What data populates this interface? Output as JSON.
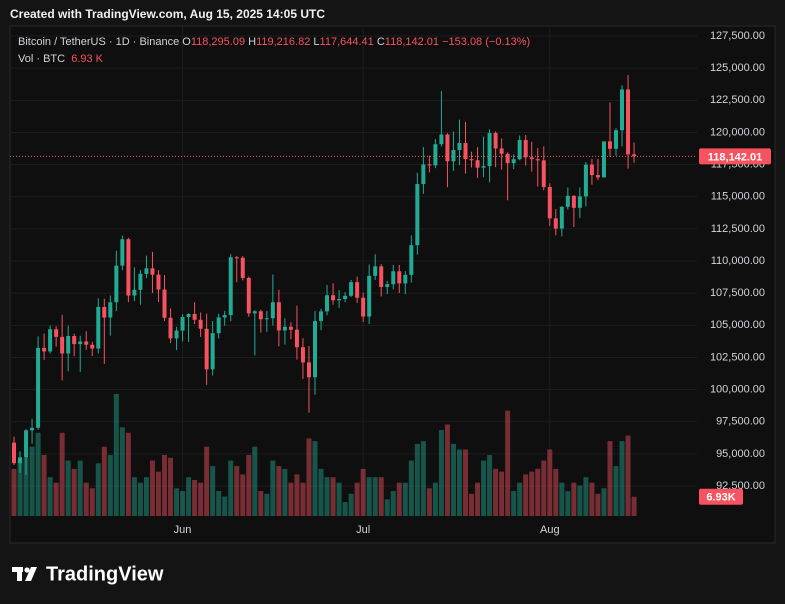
{
  "header": {
    "title": "Created with TradingView.com, Aug 15, 2025 14:05 UTC"
  },
  "legend": {
    "symbol": "Bitcoin / TetherUS · 1D · Binance",
    "open_label": "O",
    "open": "118,295.09",
    "high_label": "H",
    "high": "119,216.82",
    "low_label": "L",
    "low": "117,644.41",
    "close_label": "C",
    "close": "118,142.01",
    "change": "−153.08 (−0.13%)",
    "volume_label": "Vol · BTC",
    "volume": "6.93 K"
  },
  "footer": {
    "logo": "TradingView"
  },
  "chart_data": {
    "type": "candlestick",
    "up_color": "#22ab94",
    "down_color": "#f7525f",
    "grid": true,
    "categories": [
      null,
      null,
      null,
      null,
      null,
      null,
      null,
      null,
      null,
      null,
      null,
      null,
      null,
      null,
      null,
      null,
      null,
      null,
      null,
      null,
      null,
      null,
      null,
      null,
      null,
      null,
      null,
      null,
      "Jun",
      null,
      null,
      null,
      null,
      null,
      null,
      null,
      null,
      null,
      null,
      null,
      null,
      null,
      null,
      null,
      null,
      null,
      null,
      null,
      null,
      null,
      null,
      null,
      null,
      null,
      null,
      null,
      null,
      null,
      "Jul",
      null,
      null,
      null,
      null,
      null,
      null,
      null,
      null,
      null,
      null,
      null,
      null,
      null,
      null,
      null,
      null,
      null,
      null,
      null,
      null,
      null,
      null,
      null,
      null,
      null,
      null,
      null,
      null,
      null,
      null,
      "Aug",
      null,
      null,
      null,
      null,
      null,
      null,
      null,
      null,
      null,
      null,
      null,
      null,
      null,
      null
    ],
    "open": [
      95877,
      94277,
      94733,
      96834,
      97032,
      103241,
      102970,
      104696,
      104106,
      102812,
      104169,
      103539,
      103744,
      103489,
      103191,
      106430,
      105606,
      106791,
      109643,
      111696,
      107318,
      107761,
      109004,
      109434,
      108938,
      107781,
      105589,
      103985,
      104591,
      105642,
      105882,
      105432,
      104731,
      101575,
      104390,
      105615,
      105793,
      110294,
      110257,
      108686,
      105929,
      106090,
      105472,
      105552,
      106796,
      104601,
      104884,
      104657,
      103298,
      102120,
      100963,
      105333,
      106083,
      107341,
      106948,
      107047,
      107296,
      108356,
      107146,
      105681,
      108850,
      109584,
      107985,
      108198,
      109203,
      108262,
      108922,
      111233,
      115987,
      117516,
      117435,
      119086,
      119841,
      117758,
      118630,
      119177,
      117924,
      117840,
      117265,
      117380,
      119954,
      118755,
      118340,
      117614,
      117919,
      119415,
      118062,
      117922,
      117831,
      115758,
      113320,
      112527,
      114217,
      115071,
      114140,
      115028,
      117496,
      116688,
      116505,
      119307,
      118731,
      120172,
      123344,
      118295.09
    ],
    "high": [
      96330,
      95200,
      96920,
      97732,
      104145,
      104361,
      104984,
      104937,
      105819,
      104976,
      104356,
      104192,
      104550,
      103717,
      107108,
      107068,
      107320,
      110797,
      111980,
      111800,
      109506,
      109299,
      110422,
      110718,
      109298,
      108910,
      106313,
      104886,
      105866,
      105935,
      106794,
      105999,
      105909,
      105333,
      105900,
      106128,
      110530,
      110400,
      110392,
      108800,
      106182,
      106208,
      106128,
      108952,
      107771,
      105550,
      105250,
      106524,
      104000,
      103400,
      106128,
      106290,
      108135,
      108272,
      107735,
      107577,
      108528,
      108789,
      107540,
      109730,
      110529,
      109767,
      108460,
      109700,
      109700,
      109216,
      111999,
      116868,
      118869,
      118200,
      119488,
      123218,
      119940,
      120063,
      120998,
      120820,
      118499,
      118856,
      119676,
      120247,
      120090,
      119535,
      118451,
      118300,
      119766,
      119800,
      119273,
      118792,
      118922,
      116052,
      114037,
      114266,
      115720,
      115127,
      115716,
      117700,
      117945,
      117944,
      119312,
      122335,
      120324,
      123667,
      124474,
      119216.82
    ],
    "low": [
      94130,
      93514,
      93377,
      95784,
      96876,
      102316,
      102818,
      103346,
      100718,
      101429,
      102602,
      101383,
      103100,
      102612,
      102816,
      102000,
      104202,
      106101,
      109285,
      106800,
      106875,
      106600,
      108670,
      107516,
      106812,
      105322,
      103621,
      103068,
      103752,
      103700,
      105100,
      104100,
      100372,
      101095,
      103981,
      104965,
      105318,
      108345,
      108500,
      105671,
      102664,
      104436,
      104494,
      104979,
      103371,
      103500,
      103929,
      102345,
      100837,
      98200,
      99613,
      104622,
      105775,
      106595,
      106356,
      106798,
      107209,
      106733,
      105250,
      105100,
      108530,
      107245,
      107429,
      107800,
      107513,
      107429,
      108324,
      110500,
      115222,
      116900,
      117224,
      118906,
      115736,
      117017,
      117453,
      116812,
      117277,
      116467,
      116515,
      116128,
      117301,
      117103,
      114723,
      117152,
      117840,
      117427,
      116950,
      115796,
      115500,
      112722,
      112000,
      111920,
      114008,
      112650,
      113356,
      114259,
      115937,
      116300,
      116505,
      118100,
      118207,
      118920,
      117180,
      117644.41
    ],
    "close": [
      94277,
      94733,
      96834,
      97032,
      103241,
      102970,
      104696,
      104106,
      102812,
      104169,
      103539,
      103744,
      103489,
      103191,
      106430,
      105606,
      106791,
      109643,
      111696,
      107318,
      107761,
      109004,
      109434,
      108938,
      107781,
      105589,
      103985,
      104591,
      105642,
      105882,
      105432,
      104731,
      101575,
      104390,
      105615,
      105793,
      110294,
      110257,
      108686,
      105929,
      106090,
      105472,
      105552,
      106796,
      104601,
      104884,
      104657,
      103298,
      102120,
      100963,
      105333,
      106083,
      107341,
      106948,
      107047,
      107296,
      108356,
      107146,
      105681,
      108850,
      109584,
      107985,
      108198,
      109203,
      108262,
      108922,
      111233,
      115987,
      117516,
      117435,
      119086,
      119841,
      117758,
      118630,
      119177,
      117924,
      117840,
      117265,
      117380,
      119954,
      118755,
      118340,
      117614,
      117919,
      119415,
      118062,
      117922,
      117831,
      115758,
      113320,
      112527,
      114217,
      115071,
      114140,
      115028,
      117496,
      116688,
      116505,
      119307,
      118731,
      120172,
      123344,
      118295.09,
      118142.01
    ],
    "volume": [
      17,
      20,
      21,
      25,
      30,
      22,
      14,
      12,
      30,
      20,
      17,
      20,
      12,
      10,
      19,
      25,
      22,
      44,
      32,
      30,
      14,
      12,
      14,
      20,
      16,
      22,
      21,
      10,
      9,
      14,
      13,
      12,
      25,
      18,
      9,
      7,
      20,
      18,
      15,
      22,
      25,
      9,
      8,
      20,
      18,
      17,
      12,
      15,
      12,
      28,
      27,
      17,
      14,
      14,
      12,
      5,
      8,
      12,
      17,
      14,
      14,
      14,
      6,
      9,
      12,
      12,
      20,
      26,
      27,
      10,
      12,
      31,
      33,
      26,
      24,
      24,
      8,
      12,
      20,
      22,
      17,
      16,
      38,
      9,
      12,
      15,
      16,
      17,
      20,
      24,
      17,
      12,
      9,
      12,
      11,
      14,
      12,
      8,
      10,
      27,
      18,
      27,
      29,
      6.93
    ],
    "ylim": [
      90170,
      128280
    ],
    "yticks": [
      {
        "value": 92500,
        "label": "92,500.00"
      },
      {
        "value": 95000,
        "label": "95,000.00"
      },
      {
        "value": 97500,
        "label": "97,500.00"
      },
      {
        "value": 100000,
        "label": "100,000.00"
      },
      {
        "value": 102500,
        "label": "102,500.00"
      },
      {
        "value": 105000,
        "label": "105,000.00"
      },
      {
        "value": 107500,
        "label": "107,500.00"
      },
      {
        "value": 110000,
        "label": "110,000.00"
      },
      {
        "value": 112500,
        "label": "112,500.00"
      },
      {
        "value": 115000,
        "label": "115,000.00"
      },
      {
        "value": 117500,
        "label": "117,500.00"
      },
      {
        "value": 120000,
        "label": "120,000.00"
      },
      {
        "value": 122500,
        "label": "122,500.00"
      },
      {
        "value": 125000,
        "label": "125,000.00"
      },
      {
        "value": 127500,
        "label": "127,500.00"
      }
    ],
    "last_price": {
      "value": 118142.01,
      "label": "118,142.01"
    },
    "last_volume": {
      "value": 6.93,
      "label": "6.93K"
    }
  }
}
